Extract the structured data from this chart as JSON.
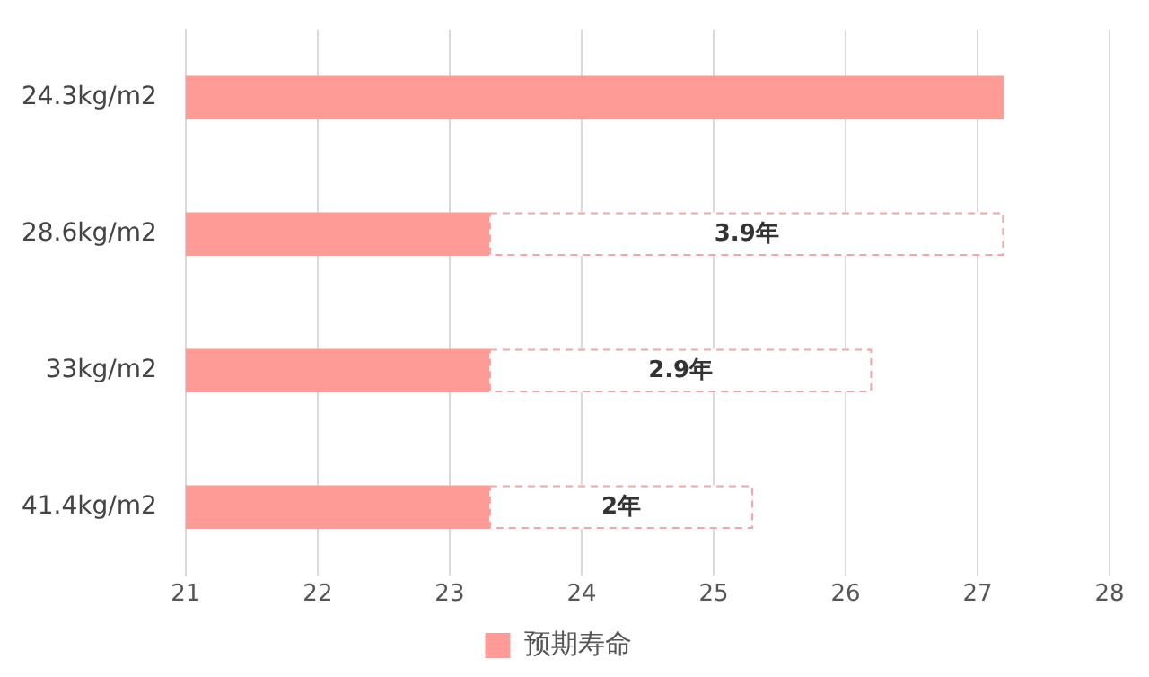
{
  "chart_data": {
    "type": "bar",
    "orientation": "horizontal",
    "categories": [
      "24.3kg/m2",
      "28.6kg/m2",
      "33kg/m2",
      "41.4kg/m2"
    ],
    "series": [
      {
        "name": "预期寿命",
        "color": "#ff9b96",
        "values": [
          27.2,
          23.3,
          23.3,
          23.3
        ]
      },
      {
        "color": "#f4a6a6",
        "line_style": "dashed",
        "base": [
          null,
          23.3,
          23.3,
          23.3
        ],
        "values": [
          null,
          3.9,
          2.9,
          2
        ],
        "value_labels": [
          null,
          "3.9年",
          "2.9年",
          "2年"
        ]
      }
    ],
    "xlim": [
      21,
      28
    ],
    "xticks": [
      21,
      22,
      23,
      24,
      25,
      26,
      27,
      28
    ],
    "grid": "x",
    "legend": "bottom"
  }
}
